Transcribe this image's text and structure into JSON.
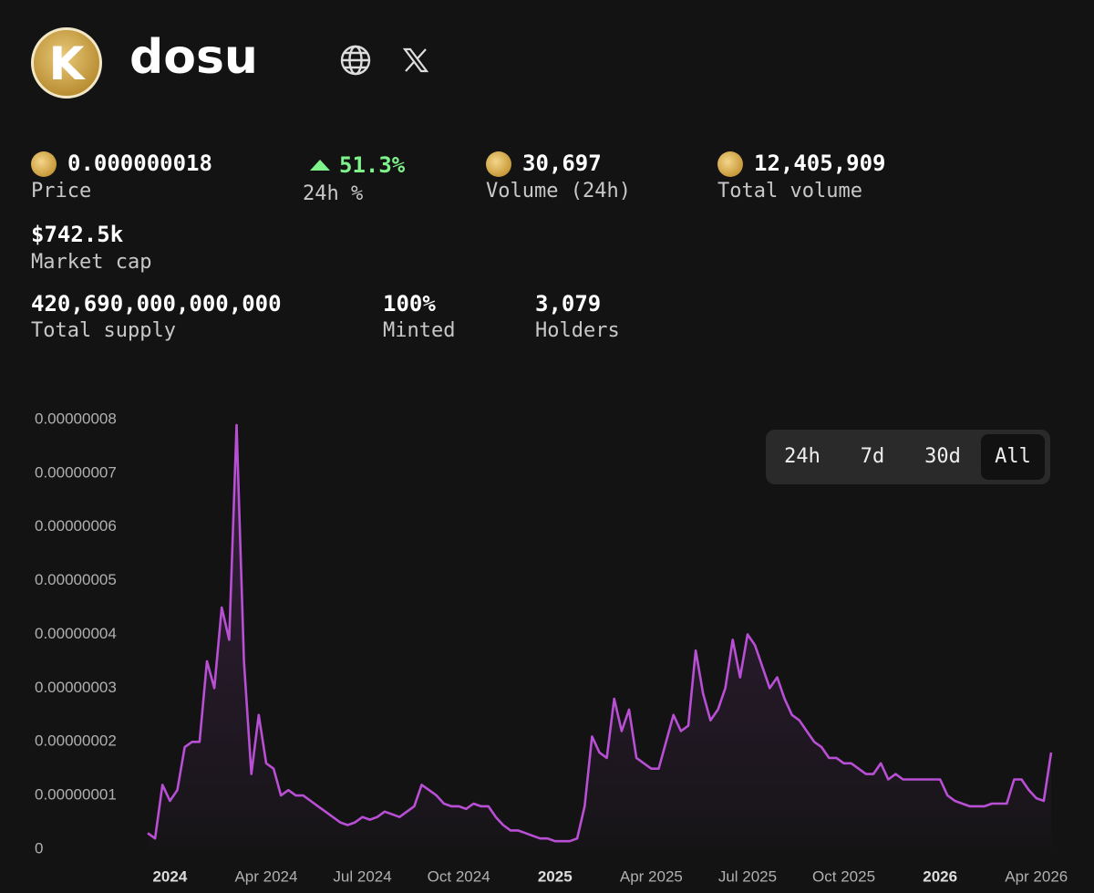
{
  "header": {
    "logo_letter": "K",
    "title": "dosu"
  },
  "stats": {
    "price": {
      "value": "0.000000018",
      "label": "Price"
    },
    "change": {
      "value": "51.3%",
      "label": "24h %"
    },
    "volume": {
      "value": "30,697",
      "label": "Volume (24h)"
    },
    "total_volume": {
      "value": "12,405,909",
      "label": "Total volume"
    },
    "market_cap": {
      "value": "$742.5k",
      "label": "Market cap"
    },
    "supply": {
      "value": "420,690,000,000,000",
      "label": "Total supply"
    },
    "minted": {
      "value": "100%",
      "label": "Minted"
    },
    "holders": {
      "value": "3,079",
      "label": "Holders"
    }
  },
  "timeframes": [
    "24h",
    "7d",
    "30d",
    "All"
  ],
  "chart_data": {
    "type": "line",
    "color": "#b84fd4",
    "ylim": [
      0,
      8e-08
    ],
    "yticks": [
      0,
      {
        "value": 1e-08,
        "label": "0.00000001"
      },
      {
        "value": 2e-08,
        "label": "0.00000002"
      },
      {
        "value": 3e-08,
        "label": "0.00000003"
      },
      {
        "value": 4e-08,
        "label": "0.00000004"
      },
      {
        "value": 5e-08,
        "label": "0.00000005"
      },
      {
        "value": 6e-08,
        "label": "0.00000006"
      },
      {
        "value": 7e-08,
        "label": "0.00000007"
      },
      {
        "value": 8e-08,
        "label": "0.00000008"
      }
    ],
    "categories": [
      null,
      null,
      null,
      "2024",
      null,
      null,
      null,
      null,
      null,
      null,
      null,
      null,
      null,
      null,
      null,
      null,
      "Apr 2024",
      null,
      null,
      null,
      null,
      null,
      null,
      null,
      null,
      null,
      null,
      null,
      null,
      "Jul 2024",
      null,
      null,
      null,
      null,
      null,
      null,
      null,
      null,
      null,
      null,
      null,
      null,
      "Oct 2024",
      null,
      null,
      null,
      null,
      null,
      null,
      null,
      null,
      null,
      null,
      null,
      null,
      "2025",
      null,
      null,
      null,
      null,
      null,
      null,
      null,
      null,
      null,
      null,
      null,
      null,
      "Apr 2025",
      null,
      null,
      null,
      null,
      null,
      null,
      null,
      null,
      null,
      null,
      null,
      null,
      "Jul 2025",
      null,
      null,
      null,
      null,
      null,
      null,
      null,
      null,
      null,
      null,
      null,
      null,
      "Oct 2025",
      null,
      null,
      null,
      null,
      null,
      null,
      null,
      null,
      null,
      null,
      null,
      null,
      "2026",
      null,
      null,
      null,
      null,
      null,
      null,
      null,
      null,
      null,
      null,
      null,
      null,
      "Apr 2026",
      null,
      null
    ],
    "values": [
      3e-09,
      2e-09,
      1.2e-08,
      9e-09,
      1.1e-08,
      1.9e-08,
      2e-08,
      2e-08,
      3.5e-08,
      3e-08,
      4.5e-08,
      3.9e-08,
      7.9e-08,
      3.5e-08,
      1.4e-08,
      2.5e-08,
      1.6e-08,
      1.5e-08,
      1e-08,
      1.1e-08,
      1e-08,
      1e-08,
      9e-09,
      8e-09,
      7e-09,
      6e-09,
      5e-09,
      4.5e-09,
      5e-09,
      6e-09,
      5.5e-09,
      6e-09,
      7e-09,
      6.5e-09,
      6e-09,
      7e-09,
      8e-09,
      1.2e-08,
      1.1e-08,
      1e-08,
      8.5e-09,
      8e-09,
      8e-09,
      7.5e-09,
      8.5e-09,
      8e-09,
      8e-09,
      6e-09,
      4.5e-09,
      3.5e-09,
      3.5e-09,
      3e-09,
      2.5e-09,
      2e-09,
      2e-09,
      1.5e-09,
      1.5e-09,
      1.5e-09,
      2e-09,
      8e-09,
      2.1e-08,
      1.8e-08,
      1.7e-08,
      2.8e-08,
      2.2e-08,
      2.6e-08,
      1.7e-08,
      1.6e-08,
      1.5e-08,
      1.5e-08,
      2e-08,
      2.5e-08,
      2.2e-08,
      2.3e-08,
      3.7e-08,
      2.9e-08,
      2.4e-08,
      2.6e-08,
      3e-08,
      3.9e-08,
      3.2e-08,
      4e-08,
      3.8e-08,
      3.4e-08,
      3e-08,
      3.2e-08,
      2.8e-08,
      2.5e-08,
      2.4e-08,
      2.2e-08,
      2e-08,
      1.9e-08,
      1.7e-08,
      1.7e-08,
      1.6e-08,
      1.6e-08,
      1.5e-08,
      1.4e-08,
      1.4e-08,
      1.6e-08,
      1.3e-08,
      1.4e-08,
      1.3e-08,
      1.3e-08,
      1.3e-08,
      1.3e-08,
      1.3e-08,
      1.3e-08,
      1e-08,
      9e-09,
      8.5e-09,
      8e-09,
      8e-09,
      8e-09,
      8.5e-09,
      8.5e-09,
      8.5e-09,
      1.3e-08,
      1.3e-08,
      1.1e-08,
      9.5e-09,
      9e-09,
      1.8e-08
    ]
  }
}
